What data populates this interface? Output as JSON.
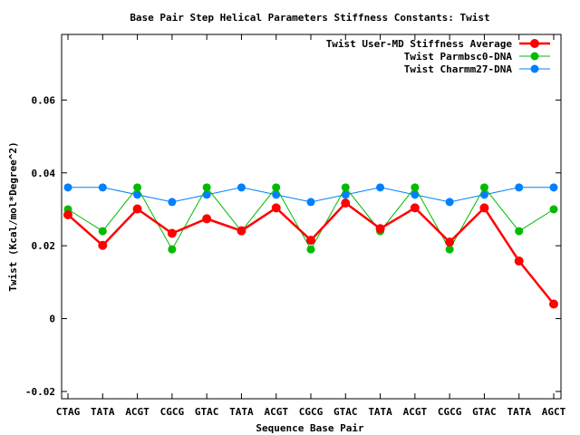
{
  "chart_data": {
    "type": "line",
    "title": "Base Pair Step Helical Parameters Stiffness Constants: Twist",
    "xlabel": "Sequence Base Pair",
    "ylabel": "Twist (Kcal/mol*Degree^2)",
    "categories": [
      "CTAG",
      "TATA",
      "ACGT",
      "CGCG",
      "GTAC",
      "TATA",
      "ACGT",
      "CGCG",
      "GTAC",
      "TATA",
      "ACGT",
      "CGCG",
      "GTAC",
      "TATA",
      "AGCT"
    ],
    "ylim": [
      -0.022,
      0.078
    ],
    "yticks": [
      -0.02,
      0,
      0.02,
      0.04,
      0.06
    ],
    "ytick_labels": [
      "-0.02",
      "0",
      "0.02",
      "0.04",
      "0.06"
    ],
    "grid": false,
    "legend_position": "top-right",
    "series": [
      {
        "name": "Twist User-MD Stiffness Average",
        "color": "#ff0000",
        "values": [
          0.0285,
          0.0201,
          0.0301,
          0.0234,
          0.0274,
          0.0241,
          0.0304,
          0.0215,
          0.0317,
          0.0247,
          0.0304,
          0.021,
          0.0304,
          0.0158,
          0.004
        ]
      },
      {
        "name": "Twist Parmbsc0-DNA",
        "color": "#00bb00",
        "values": [
          0.03,
          0.024,
          0.036,
          0.019,
          0.036,
          0.024,
          0.036,
          0.019,
          0.036,
          0.024,
          0.036,
          0.019,
          0.036,
          0.024,
          0.03
        ]
      },
      {
        "name": "Twist Charmm27-DNA",
        "color": "#0080ff",
        "values": [
          0.036,
          0.036,
          0.034,
          0.032,
          0.034,
          0.036,
          0.034,
          0.032,
          0.034,
          0.036,
          0.034,
          0.032,
          0.034,
          0.036,
          0.036
        ]
      }
    ]
  }
}
